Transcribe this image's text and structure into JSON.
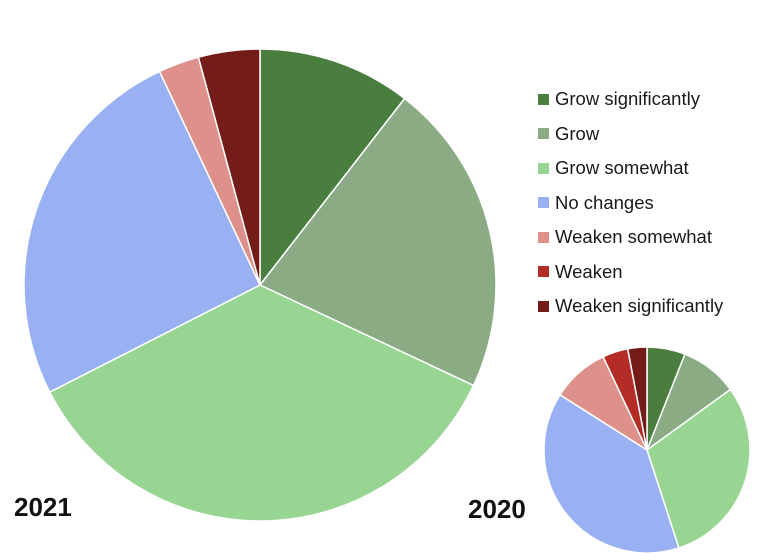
{
  "chart_data": [
    {
      "type": "pie",
      "year_label": "2021",
      "categories": [
        "Grow significantly",
        "Grow",
        "Grow somewhat",
        "No changes",
        "Weaken somewhat",
        "Weaken",
        "Weaken significantly"
      ],
      "values": [
        10.5,
        21.5,
        35.5,
        25.5,
        2.8,
        0,
        4.2
      ]
    },
    {
      "type": "pie",
      "year_label": "2020",
      "categories": [
        "Grow significantly",
        "Grow",
        "Grow somewhat",
        "No changes",
        "Weaken somewhat",
        "Weaken",
        "Weaken significantly"
      ],
      "values": [
        6.0,
        9.0,
        30.0,
        39.0,
        9.0,
        4.0,
        3.0
      ]
    }
  ],
  "legend": {
    "items": [
      {
        "label": "Grow significantly",
        "color": "#4a7e3f"
      },
      {
        "label": "Grow",
        "color": "#8bab85"
      },
      {
        "label": "Grow somewhat",
        "color": "#98d592"
      },
      {
        "label": "No changes",
        "color": "#99b1f2"
      },
      {
        "label": "Weaken somewhat",
        "color": "#de908a"
      },
      {
        "label": "Weaken",
        "color": "#b42c26"
      },
      {
        "label": "Weaken significantly",
        "color": "#731c18"
      }
    ]
  }
}
